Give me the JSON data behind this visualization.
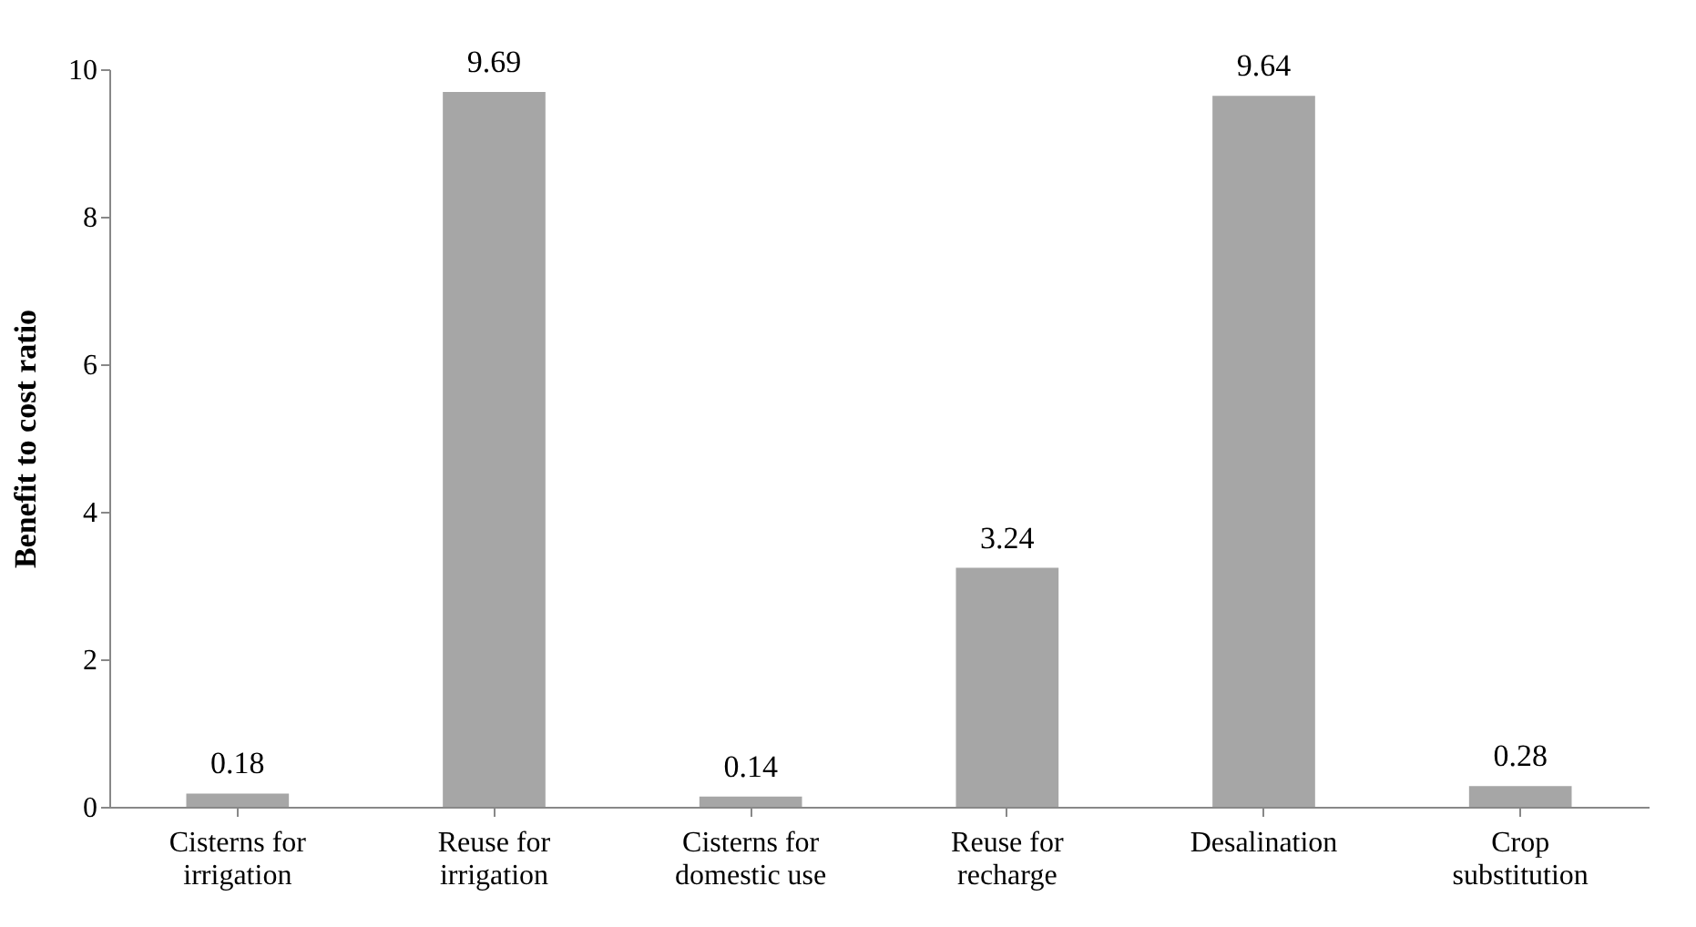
{
  "chart_data": {
    "type": "bar",
    "ylabel": "Benefit to cost ratio",
    "categories": [
      "Cisterns for irrigation",
      "Reuse for irrigation",
      "Cisterns for domestic use",
      "Reuse for recharge",
      "Desalination",
      "Crop substitution"
    ],
    "values": [
      0.18,
      9.69,
      0.14,
      3.24,
      9.64,
      0.28
    ],
    "color": "#a6a6a6",
    "ylim": [
      0,
      10
    ],
    "yticks": [
      0,
      2,
      4,
      6,
      8,
      10
    ],
    "grid": false,
    "data_labels": true
  }
}
